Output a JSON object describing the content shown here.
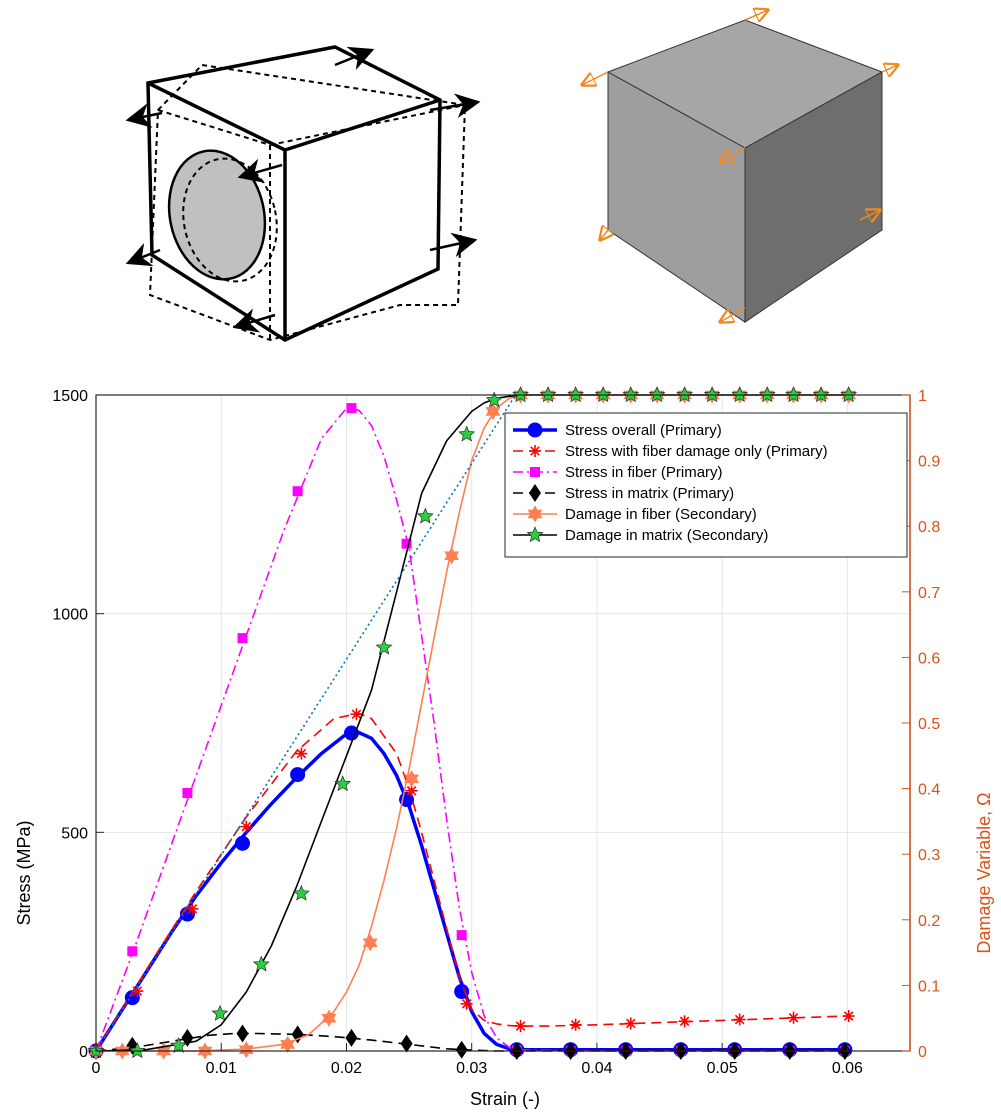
{
  "chart_data": {
    "type": "line",
    "xlabel": "Strain (-)",
    "ylabel": "Stress (MPa)",
    "ylabel_right": "Damage Variable,  Ω",
    "xlim": [
      0,
      0.065
    ],
    "ylim": [
      0,
      1500
    ],
    "ylim_right": [
      0,
      1
    ],
    "x_ticks": [
      "0",
      "0.01",
      "0.02",
      "0.03",
      "0.04",
      "0.05",
      "0.06"
    ],
    "x_tick_values": [
      0,
      0.01,
      0.02,
      0.03,
      0.04,
      0.05,
      0.06
    ],
    "y_ticks": [
      "0",
      "500",
      "1000",
      "1500"
    ],
    "y_tick_values": [
      0,
      500,
      1000,
      1500
    ],
    "y_right_ticks": [
      "0",
      "0.1",
      "0.2",
      "0.3",
      "0.4",
      "0.5",
      "0.6",
      "0.7",
      "0.8",
      "0.9",
      "1"
    ],
    "y_right_tick_values": [
      0,
      0.1,
      0.2,
      0.3,
      0.4,
      0.5,
      0.6,
      0.7,
      0.8,
      0.9,
      1
    ],
    "grid": true,
    "legend_position": "top-right",
    "series": [
      {
        "name": "Stress overall (Primary)",
        "axis": "left",
        "color": "#0000FF",
        "marker": "circle",
        "line": "solid",
        "x": [
          0,
          0.002,
          0.004,
          0.006,
          0.008,
          0.01,
          0.012,
          0.014,
          0.016,
          0.018,
          0.02,
          0.021,
          0.022,
          0.023,
          0.024,
          0.025,
          0.026,
          0.027,
          0.028,
          0.029,
          0.03,
          0.031,
          0.032,
          0.033,
          0.034,
          0.036,
          0.04,
          0.05,
          0.06
        ],
        "y": [
          0,
          90,
          180,
          270,
          355,
          430,
          500,
          565,
          625,
          680,
          725,
          728,
          715,
          680,
          630,
          560,
          470,
          370,
          270,
          170,
          90,
          40,
          15,
          5,
          3,
          3,
          3,
          3,
          3
        ],
        "marker_x": [
          0,
          0.0029,
          0.0073,
          0.0117,
          0.0161,
          0.0204,
          0.0248,
          0.0292,
          0.0336,
          0.0379,
          0.0423,
          0.0467,
          0.051,
          0.0554,
          0.0598
        ],
        "marker_y": [
          0,
          122,
          313,
          475,
          632,
          727,
          575,
          136,
          3,
          3,
          3,
          3,
          3,
          3,
          3
        ]
      },
      {
        "name": "Stress with fiber damage only (Primary)",
        "axis": "left",
        "color": "#FF0000",
        "marker": "asterisk",
        "line": "dashed",
        "x": [
          0,
          0.004,
          0.008,
          0.012,
          0.016,
          0.019,
          0.021,
          0.022,
          0.024,
          0.025,
          0.026,
          0.027,
          0.028,
          0.029,
          0.03,
          0.031,
          0.032,
          0.033,
          0.034,
          0.036,
          0.04,
          0.045,
          0.05,
          0.055,
          0.06
        ],
        "y": [
          0,
          185,
          365,
          535,
          685,
          760,
          772,
          760,
          680,
          600,
          500,
          390,
          280,
          170,
          95,
          70,
          62,
          58,
          57,
          57,
          60,
          65,
          70,
          75,
          80
        ],
        "marker_x": [
          0,
          0.0033,
          0.0077,
          0.012,
          0.0164,
          0.0208,
          0.0252,
          0.0296,
          0.0339,
          0.0383,
          0.0427,
          0.047,
          0.0514,
          0.0557,
          0.0601
        ],
        "marker_y": [
          0,
          137,
          325,
          513,
          680,
          770,
          595,
          108,
          57,
          60,
          63,
          68,
          72,
          76,
          80
        ]
      },
      {
        "name": "Stress in fiber (Primary)",
        "axis": "left",
        "color": "#FF00FF",
        "marker": "square",
        "line": "dashdot",
        "x": [
          0,
          0.003,
          0.006,
          0.009,
          0.012,
          0.015,
          0.018,
          0.02,
          0.021,
          0.022,
          0.023,
          0.024,
          0.025,
          0.026,
          0.027,
          0.028,
          0.029,
          0.03,
          0.031,
          0.032,
          0.033,
          0.034,
          0.04,
          0.05,
          0.06
        ],
        "y": [
          0,
          230,
          470,
          710,
          950,
          1190,
          1400,
          1470,
          1465,
          1430,
          1360,
          1260,
          1150,
          950,
          750,
          530,
          330,
          180,
          80,
          30,
          8,
          2,
          0,
          0,
          0
        ],
        "marker_x": [
          0,
          0.0029,
          0.0073,
          0.0117,
          0.0161,
          0.0204,
          0.0248,
          0.0292,
          0.0336,
          0.0379,
          0.0423,
          0.0467,
          0.051,
          0.0554,
          0.0598
        ],
        "marker_y": [
          0,
          228,
          590,
          944,
          1280,
          1470,
          1160,
          265,
          2,
          0,
          0,
          0,
          0,
          0,
          0
        ]
      },
      {
        "name": "Stress in matrix (Primary)",
        "axis": "left",
        "color": "#000000",
        "marker": "diamond",
        "line": "dashed",
        "x": [
          0,
          0.003,
          0.006,
          0.009,
          0.011,
          0.013,
          0.016,
          0.019,
          0.022,
          0.025,
          0.028,
          0.03,
          0.032,
          0.034,
          0.04,
          0.05,
          0.06
        ],
        "y": [
          0,
          8,
          22,
          36,
          40,
          40,
          38,
          33,
          25,
          15,
          5,
          2,
          0,
          0,
          0,
          0,
          0
        ],
        "marker_x": [
          0,
          0.0029,
          0.0073,
          0.0117,
          0.0161,
          0.0204,
          0.0248,
          0.0292,
          0.0336,
          0.0379,
          0.0423,
          0.0467,
          0.051,
          0.0554,
          0.0598
        ],
        "marker_y": [
          0,
          12,
          30,
          40,
          38,
          30,
          17,
          3,
          0,
          0,
          0,
          0,
          0,
          0,
          0
        ]
      },
      {
        "name": "Damage in fiber (Secondary)",
        "axis": "right",
        "color": "#FF7F50",
        "marker": "hexagram",
        "line": "solid",
        "x": [
          0,
          0.008,
          0.012,
          0.015,
          0.017,
          0.019,
          0.02,
          0.021,
          0.022,
          0.023,
          0.024,
          0.025,
          0.026,
          0.027,
          0.028,
          0.029,
          0.03,
          0.031,
          0.032,
          0.033,
          0.034,
          0.036,
          0.04,
          0.05,
          0.06
        ],
        "y": [
          0,
          0,
          0.003,
          0.01,
          0.025,
          0.06,
          0.09,
          0.13,
          0.19,
          0.26,
          0.34,
          0.43,
          0.53,
          0.63,
          0.73,
          0.82,
          0.9,
          0.95,
          0.98,
          0.995,
          1,
          1,
          1,
          1,
          1
        ],
        "marker_x": [
          0,
          0.0021,
          0.0054,
          0.0087,
          0.012,
          0.0153,
          0.0186,
          0.0219,
          0.0252,
          0.0284,
          0.0317,
          0.0339,
          0.0361,
          0.0383,
          0.0405,
          0.0427,
          0.0448,
          0.047,
          0.0492,
          0.0514,
          0.0536,
          0.0557,
          0.0579,
          0.0601
        ],
        "marker_y": [
          0,
          0,
          0,
          0,
          0.002,
          0.01,
          0.05,
          0.165,
          0.415,
          0.755,
          0.975,
          1,
          1,
          1,
          1,
          1,
          1,
          1,
          1,
          1,
          1,
          1,
          1,
          1
        ]
      },
      {
        "name": "Damage in matrix (Secondary)",
        "axis": "right",
        "color": "#000000",
        "marker": "pentagram",
        "line": "solid",
        "x": [
          0,
          0.004,
          0.008,
          0.01,
          0.012,
          0.014,
          0.016,
          0.018,
          0.02,
          0.022,
          0.024,
          0.026,
          0.028,
          0.03,
          0.031,
          0.032,
          0.033,
          0.034,
          0.036,
          0.04,
          0.05,
          0.06
        ],
        "y": [
          0,
          0.002,
          0.015,
          0.04,
          0.09,
          0.16,
          0.25,
          0.35,
          0.45,
          0.55,
          0.7,
          0.85,
          0.93,
          0.975,
          0.988,
          0.995,
          0.998,
          1,
          1,
          1,
          1,
          1
        ],
        "marker_x": [
          0,
          0.0033,
          0.0066,
          0.0099,
          0.0132,
          0.0164,
          0.0197,
          0.023,
          0.0263,
          0.0296,
          0.0318,
          0.0339,
          0.0361,
          0.0383,
          0.0405,
          0.0427,
          0.0448,
          0.047,
          0.0492,
          0.0514,
          0.0536,
          0.0557,
          0.0579,
          0.0601
        ],
        "marker_y": [
          0,
          0,
          0.008,
          0.057,
          0.132,
          0.24,
          0.407,
          0.615,
          0.815,
          0.94,
          0.992,
          1,
          1,
          1,
          1,
          1,
          1,
          1,
          1,
          1,
          1,
          1,
          1,
          1
        ]
      },
      {
        "name": "",
        "axis": "left",
        "color": "#0072BD",
        "marker": "none",
        "line": "dotted",
        "x": [
          0.0,
          0.0335
        ],
        "y": [
          0,
          1500
        ]
      }
    ]
  },
  "colors": {
    "left_axis": "#000000",
    "right_axis": "#D95319",
    "grid": "#E6E6E6",
    "cube_fill_top": "#A6A6A6",
    "cube_fill_left": "#9E9E9E",
    "cube_fill_right": "#6E6E6E",
    "arrow_orange": "#F0891E",
    "fiber_fill": "#C0C0C0"
  }
}
